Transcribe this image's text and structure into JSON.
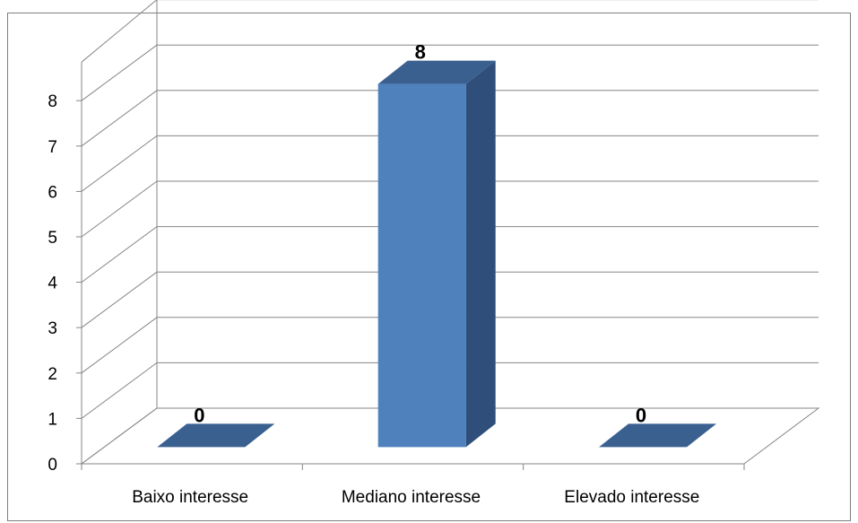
{
  "chart_data": {
    "type": "bar",
    "categories": [
      "Baixo interesse",
      "Mediano interesse",
      "Elevado interesse"
    ],
    "values": [
      0,
      8,
      0
    ],
    "data_labels": [
      "0",
      "8",
      "0"
    ],
    "yticks": [
      "0",
      "1",
      "2",
      "3",
      "4",
      "5",
      "6",
      "7",
      "8"
    ],
    "ylim": [
      0,
      8
    ],
    "grid": true,
    "style": "3d-column",
    "legend": "none",
    "title": "",
    "xlabel": "",
    "ylabel": ""
  },
  "colors": {
    "bar_front": "#4F81BD",
    "bar_side": "#2F4F7A",
    "bar_top": "#3A6090",
    "grid": "#868686",
    "border": "#7F7F7F"
  }
}
